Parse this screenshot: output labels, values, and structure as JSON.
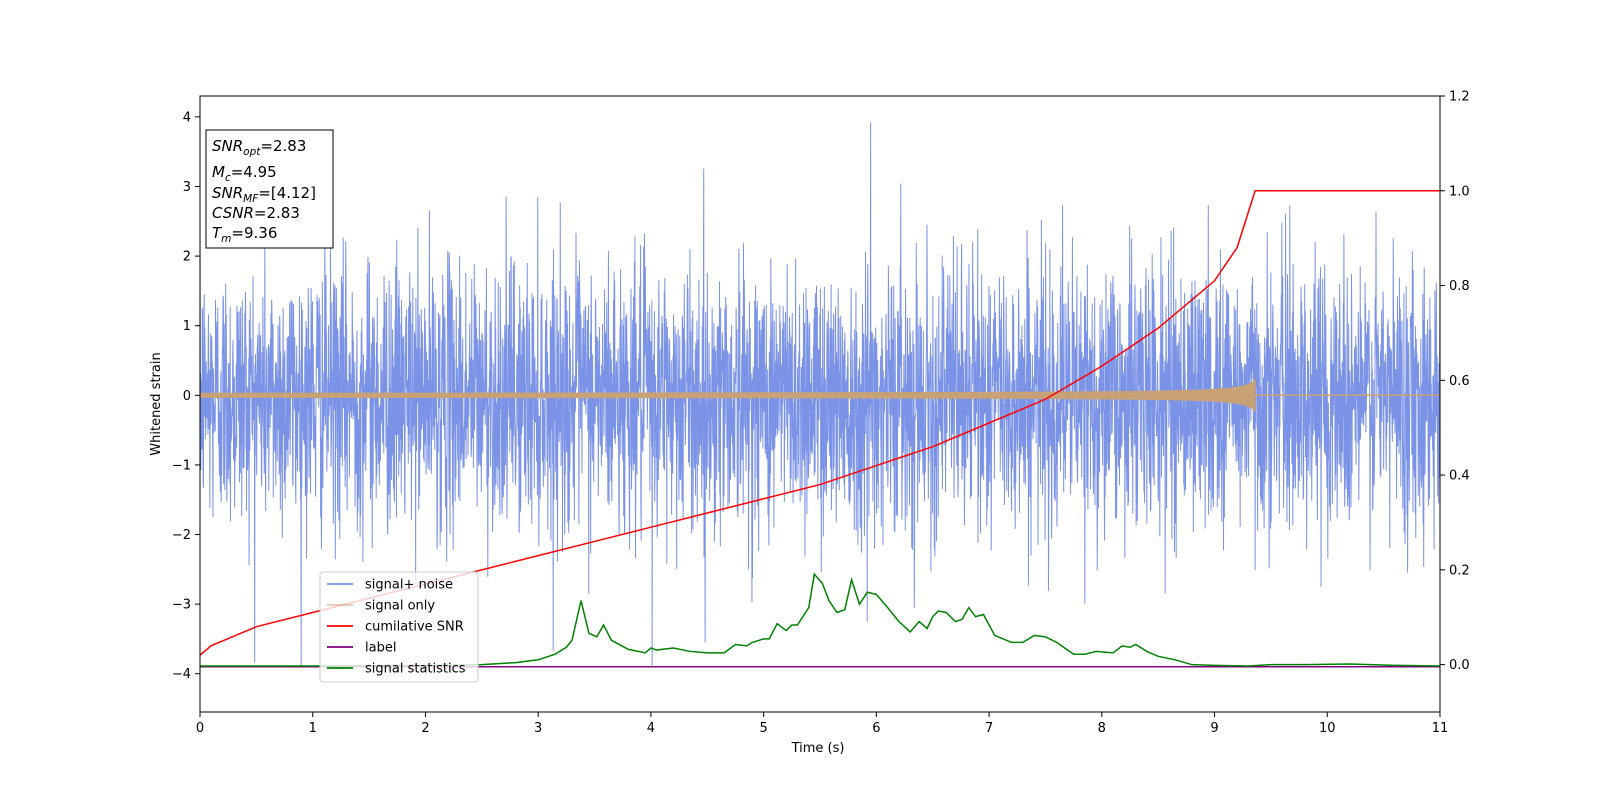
{
  "chart_data": {
    "type": "line",
    "title": "",
    "xlabel": "Time (s)",
    "ylabel": "Whitened strain",
    "y2label": "",
    "xlim": [
      0,
      11
    ],
    "ylim": [
      -4.55,
      4.3
    ],
    "y2lim": [
      -0.1,
      1.2
    ],
    "x_ticks": [
      "0",
      "1",
      "2",
      "3",
      "4",
      "5",
      "6",
      "7",
      "8",
      "9",
      "10",
      "11"
    ],
    "y_ticks": [
      "4",
      "3",
      "2",
      "1",
      "0",
      "−1",
      "−2",
      "−3",
      "−4"
    ],
    "y2_ticks": [
      "1.2",
      "1.0",
      "0.8",
      "0.6",
      "0.4",
      "0.2",
      "0.0"
    ],
    "grid": false,
    "legend_position": "lower-left",
    "series": [
      {
        "name": "signal+ noise",
        "color": "#7891e6",
        "axis": "left",
        "kind": "gaussian-noise",
        "std": 0.95,
        "approx_range": [
          -3.9,
          3.9
        ],
        "notable_peaks": [
          [
            5.95,
            3.92
          ],
          [
            4.01,
            -3.9
          ],
          [
            4.48,
            -3.55
          ],
          [
            5.92,
            -3.25
          ],
          [
            7.85,
            -3.0
          ]
        ]
      },
      {
        "name": "signal only",
        "color": "#c8a276",
        "axis": "left",
        "kind": "chirp",
        "start_x": 0,
        "merger_x": 9.36,
        "amplitude_start": 0.02,
        "amplitude_at_merger": 0.23
      },
      {
        "name": "cumilative SNR",
        "color": "#ff0000",
        "axis": "right",
        "x": [
          0,
          0.1,
          0.5,
          1,
          1.5,
          2,
          2.5,
          3,
          3.5,
          4,
          4.5,
          5,
          5.5,
          6,
          6.5,
          7,
          7.5,
          8,
          8.5,
          9,
          9.2,
          9.36,
          11
        ],
        "values": [
          0.02,
          0.04,
          0.08,
          0.11,
          0.14,
          0.17,
          0.2,
          0.23,
          0.26,
          0.29,
          0.32,
          0.35,
          0.38,
          0.42,
          0.46,
          0.51,
          0.56,
          0.63,
          0.71,
          0.81,
          0.88,
          1.0,
          1.0
        ]
      },
      {
        "name": "label",
        "color": "#800080",
        "axis": "left",
        "x": [
          0,
          11
        ],
        "values": [
          -3.9,
          -3.9
        ]
      },
      {
        "name": "signal statistics",
        "color": "#008000",
        "axis": "left",
        "x": [
          0,
          1,
          2,
          2.5,
          2.8,
          3.0,
          3.15,
          3.25,
          3.3,
          3.38,
          3.45,
          3.52,
          3.58,
          3.65,
          3.8,
          3.95,
          4.0,
          4.05,
          4.2,
          4.35,
          4.5,
          4.6,
          4.65,
          4.75,
          4.85,
          4.9,
          5.0,
          5.05,
          5.12,
          5.2,
          5.25,
          5.3,
          5.4,
          5.45,
          5.52,
          5.58,
          5.65,
          5.72,
          5.78,
          5.85,
          5.92,
          6.0,
          6.1,
          6.2,
          6.3,
          6.38,
          6.45,
          6.5,
          6.55,
          6.62,
          6.7,
          6.76,
          6.82,
          6.88,
          6.95,
          7.05,
          7.2,
          7.3,
          7.4,
          7.5,
          7.6,
          7.75,
          7.85,
          7.95,
          8.1,
          8.18,
          8.25,
          8.3,
          8.4,
          8.5,
          8.65,
          8.8,
          9.0,
          9.3,
          9.5,
          9.8,
          10.2,
          10.6,
          11.0
        ],
        "values": [
          -3.89,
          -3.89,
          -3.88,
          -3.87,
          -3.84,
          -3.8,
          -3.72,
          -3.62,
          -3.52,
          -2.95,
          -3.42,
          -3.47,
          -3.3,
          -3.52,
          -3.65,
          -3.7,
          -3.63,
          -3.66,
          -3.63,
          -3.68,
          -3.7,
          -3.7,
          -3.7,
          -3.58,
          -3.6,
          -3.55,
          -3.5,
          -3.5,
          -3.28,
          -3.38,
          -3.3,
          -3.3,
          -3.05,
          -2.57,
          -2.7,
          -2.95,
          -3.12,
          -3.08,
          -2.65,
          -3.0,
          -2.83,
          -2.86,
          -3.05,
          -3.25,
          -3.4,
          -3.25,
          -3.35,
          -3.18,
          -3.1,
          -3.12,
          -3.25,
          -3.22,
          -3.05,
          -3.18,
          -3.15,
          -3.45,
          -3.55,
          -3.55,
          -3.45,
          -3.47,
          -3.55,
          -3.72,
          -3.72,
          -3.68,
          -3.7,
          -3.6,
          -3.62,
          -3.58,
          -3.68,
          -3.75,
          -3.8,
          -3.87,
          -3.88,
          -3.89,
          -3.87,
          -3.87,
          -3.86,
          -3.88,
          -3.89
        ]
      }
    ],
    "info_box": {
      "snr_opt": {
        "main": "SNR",
        "sub": "opt",
        "value": "=2.83"
      },
      "mc": {
        "main": "M",
        "sub": "c",
        "value": "=4.95"
      },
      "snr_mf": {
        "main": "SNR",
        "sub": "MF",
        "value": "=[4.12]"
      },
      "csnr": {
        "main": "CSNR",
        "value": "=2.83"
      },
      "tm": {
        "main": "T",
        "sub": "m",
        "value": "=9.36"
      }
    }
  }
}
